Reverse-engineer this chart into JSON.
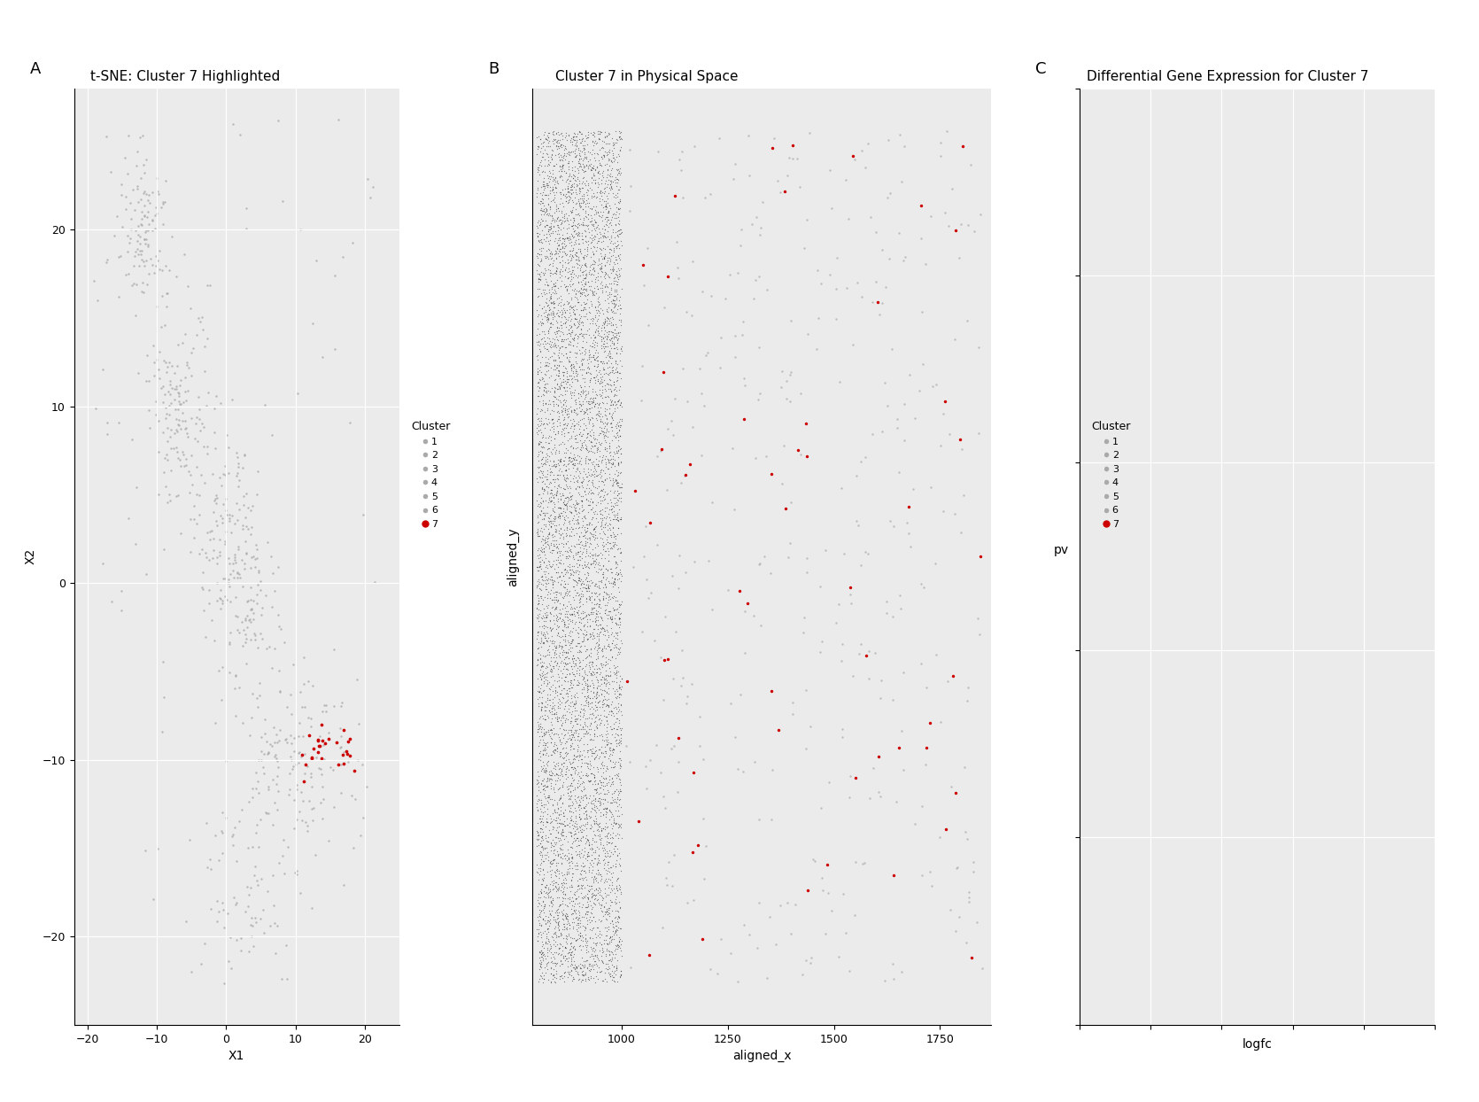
{
  "panel_A_title": "t-SNE: Cluster 7 Highlighted",
  "panel_B_title": "Cluster 7 in Physical Space",
  "panel_C_title": "Differential Gene Expression for Cluster 7",
  "panel_A_label": "A",
  "panel_B_label": "B",
  "panel_C_label": "C",
  "xlabel_A": "X1",
  "ylabel_A": "X2",
  "xlabel_B": "aligned_x",
  "ylabel_B": "aligned_y",
  "xlabel_C": "logfc",
  "ylabel_C": "pv",
  "gray_color": "#aaaaaa",
  "dark_color": "#333333",
  "red_color": "#cc0000",
  "background_color": "#ffffff",
  "panel_bg": "#ebebeb",
  "seed": 42,
  "xlim_A": [
    -22,
    25
  ],
  "ylim_A": [
    -25,
    28
  ],
  "xticks_A": [
    -20,
    -10,
    0,
    10,
    20
  ],
  "yticks_A": [
    -20,
    -10,
    0,
    10,
    20
  ],
  "xlim_B": [
    790,
    1870
  ],
  "xticks_B": [
    1000,
    1250,
    1500,
    1750
  ],
  "title_fontsize": 11,
  "label_fontsize": 10,
  "tick_fontsize": 9,
  "legend_title": "Cluster",
  "legend_labels": [
    "1",
    "2",
    "3",
    "4",
    "5",
    "6",
    "7"
  ]
}
